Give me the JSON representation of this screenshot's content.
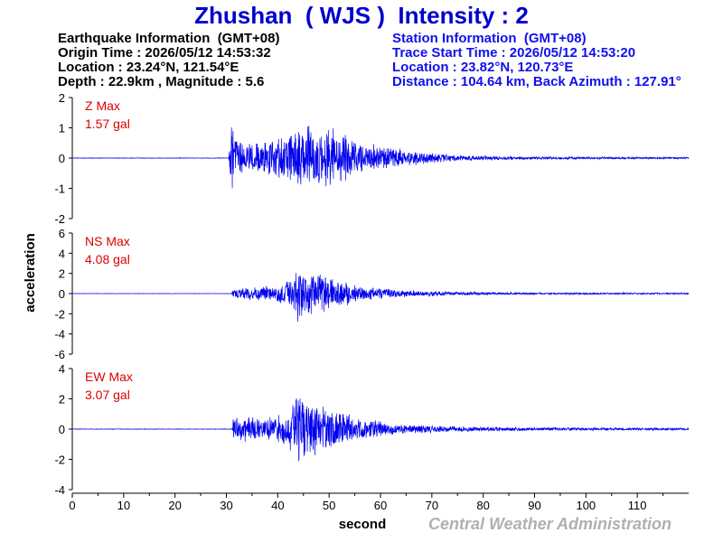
{
  "title": "Zhushan  ( WJS )  Intensity : 2",
  "earthquake_info": {
    "heading": "Earthquake Information  (GMT+08)",
    "origin_time": "Origin Time : 2026/05/12 14:53:32",
    "location": "Location : 23.24°N, 121.54°E",
    "depth_magnitude": "Depth : 22.9km , Magnitude : 5.6"
  },
  "station_info": {
    "heading": "Station Information  (GMT+08)",
    "trace_start": "Trace Start Time : 2026/05/12 14:53:20",
    "location": "Location : 23.82°N, 120.73°E",
    "distance": "Distance : 104.64 km, Back Azimuth : 127.91°"
  },
  "credit": "Central Weather Administration",
  "colors": {
    "trace": "#0000ee",
    "label": "#dd0000",
    "title": "#0000cc",
    "station_text": "#1010ee"
  },
  "chart_data": {
    "type": "line",
    "xlabel": "second",
    "ylabel": "acceleration",
    "xlim": [
      0,
      120
    ],
    "xticks": [
      "0",
      "10",
      "20",
      "30",
      "40",
      "50",
      "60",
      "70",
      "80",
      "90",
      "100",
      "110"
    ],
    "grid": false,
    "series": [
      {
        "name": "Z Max",
        "max_label": "1.57 gal",
        "ylim": [
          -2,
          2
        ],
        "yticks": [
          "2",
          "1",
          "0",
          "-1",
          "-2"
        ],
        "envelope": [
          [
            0,
            0.01
          ],
          [
            30.4,
            0.01
          ],
          [
            30.6,
            0.3
          ],
          [
            31,
            1.4
          ],
          [
            31.5,
            0.7
          ],
          [
            33,
            0.6
          ],
          [
            35,
            0.5
          ],
          [
            37,
            0.6
          ],
          [
            39,
            0.7
          ],
          [
            41,
            0.8
          ],
          [
            44,
            1.0
          ],
          [
            46,
            1.2
          ],
          [
            48,
            1.0
          ],
          [
            50,
            1.1
          ],
          [
            53,
            0.9
          ],
          [
            55,
            0.6
          ],
          [
            58,
            0.5
          ],
          [
            62,
            0.4
          ],
          [
            66,
            0.3
          ],
          [
            70,
            0.2
          ],
          [
            75,
            0.1
          ],
          [
            85,
            0.06
          ],
          [
            100,
            0.04
          ],
          [
            120,
            0.03
          ]
        ]
      },
      {
        "name": "NS Max",
        "max_label": "4.08 gal",
        "ylim": [
          -6,
          6
        ],
        "yticks": [
          "6",
          "4",
          "2",
          "0",
          "-2",
          "-4",
          "-6"
        ],
        "envelope": [
          [
            0,
            0.02
          ],
          [
            31,
            0.02
          ],
          [
            31.3,
            0.5
          ],
          [
            34,
            0.7
          ],
          [
            38,
            0.8
          ],
          [
            41,
            1.0
          ],
          [
            43,
            1.6
          ],
          [
            43.6,
            4.0
          ],
          [
            45,
            2.4
          ],
          [
            48,
            2.2
          ],
          [
            50,
            1.8
          ],
          [
            53,
            1.3
          ],
          [
            56,
            0.8
          ],
          [
            62,
            0.5
          ],
          [
            68,
            0.3
          ],
          [
            75,
            0.2
          ],
          [
            90,
            0.1
          ],
          [
            120,
            0.08
          ]
        ]
      },
      {
        "name": "EW Max",
        "max_label": "3.07 gal",
        "ylim": [
          -4,
          4
        ],
        "yticks": [
          "4",
          "2",
          "0",
          "-2",
          "-4"
        ],
        "envelope": [
          [
            0,
            0.02
          ],
          [
            31,
            0.02
          ],
          [
            31.3,
            0.8
          ],
          [
            34,
            0.9
          ],
          [
            38,
            0.8
          ],
          [
            42,
            1.2
          ],
          [
            43.4,
            2.2
          ],
          [
            43.9,
            3.1
          ],
          [
            46,
            2.3
          ],
          [
            48,
            1.8
          ],
          [
            50,
            1.5
          ],
          [
            53,
            1.1
          ],
          [
            56,
            0.8
          ],
          [
            62,
            0.4
          ],
          [
            70,
            0.25
          ],
          [
            80,
            0.15
          ],
          [
            100,
            0.1
          ],
          [
            120,
            0.08
          ]
        ]
      }
    ]
  }
}
